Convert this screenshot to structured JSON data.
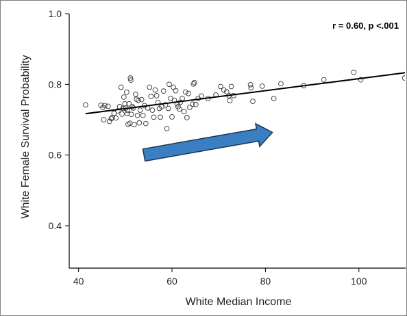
{
  "chart_data": {
    "type": "scatter",
    "xlabel": "White Median Income",
    "ylabel": "White Female Survival Probability",
    "xlim": [
      38,
      110
    ],
    "ylim": [
      0.28,
      1.0
    ],
    "xticks": [
      40,
      60,
      80,
      100
    ],
    "yticks": [
      0.4,
      0.6,
      0.8,
      1.0
    ],
    "xtick_labels": [
      "40",
      "60",
      "80",
      "100"
    ],
    "ytick_labels": [
      "0.4",
      "0.6",
      "0.8",
      "1.0"
    ],
    "annotation": "r = 0.60, p <.001",
    "grid": false,
    "marker_color": "#333333",
    "line_color": "#000000",
    "arrow_color": "#3a7fc1",
    "fit_line": {
      "x": [
        41.5,
        110
      ],
      "y": [
        0.717,
        0.833
      ]
    },
    "arrow": {
      "from": [
        54,
        0.6
      ],
      "to": [
        81.5,
        0.664
      ]
    },
    "points": [
      [
        41.5,
        0.742
      ],
      [
        44.8,
        0.741
      ],
      [
        45.2,
        0.735
      ],
      [
        45.4,
        0.7
      ],
      [
        45.6,
        0.74
      ],
      [
        46.3,
        0.738
      ],
      [
        46.6,
        0.695
      ],
      [
        47.0,
        0.703
      ],
      [
        47.2,
        0.706
      ],
      [
        47.6,
        0.718
      ],
      [
        48.0,
        0.705
      ],
      [
        48.4,
        0.725
      ],
      [
        48.8,
        0.737
      ],
      [
        49.1,
        0.792
      ],
      [
        49.3,
        0.716
      ],
      [
        49.5,
        0.732
      ],
      [
        49.7,
        0.764
      ],
      [
        49.9,
        0.745
      ],
      [
        50.1,
        0.733
      ],
      [
        50.3,
        0.778
      ],
      [
        50.4,
        0.718
      ],
      [
        50.5,
        0.726
      ],
      [
        50.6,
        0.687
      ],
      [
        50.8,
        0.745
      ],
      [
        51.0,
        0.69
      ],
      [
        51.1,
        0.818
      ],
      [
        51.2,
        0.812
      ],
      [
        51.3,
        0.715
      ],
      [
        51.5,
        0.737
      ],
      [
        51.7,
        0.733
      ],
      [
        51.9,
        0.686
      ],
      [
        52.2,
        0.772
      ],
      [
        52.4,
        0.758
      ],
      [
        52.6,
        0.712
      ],
      [
        52.8,
        0.755
      ],
      [
        53.0,
        0.691
      ],
      [
        53.2,
        0.727
      ],
      [
        53.5,
        0.757
      ],
      [
        53.8,
        0.712
      ],
      [
        54.1,
        0.74
      ],
      [
        54.4,
        0.689
      ],
      [
        54.8,
        0.733
      ],
      [
        55.2,
        0.792
      ],
      [
        55.5,
        0.766
      ],
      [
        55.8,
        0.727
      ],
      [
        56.1,
        0.707
      ],
      [
        56.4,
        0.784
      ],
      [
        56.7,
        0.768
      ],
      [
        57.0,
        0.749
      ],
      [
        57.3,
        0.732
      ],
      [
        57.5,
        0.707
      ],
      [
        57.8,
        0.737
      ],
      [
        58.2,
        0.781
      ],
      [
        58.6,
        0.742
      ],
      [
        58.9,
        0.675
      ],
      [
        59.2,
        0.732
      ],
      [
        59.4,
        0.8
      ],
      [
        59.7,
        0.76
      ],
      [
        60.0,
        0.708
      ],
      [
        60.3,
        0.792
      ],
      [
        60.5,
        0.755
      ],
      [
        60.8,
        0.782
      ],
      [
        61.1,
        0.745
      ],
      [
        61.3,
        0.737
      ],
      [
        61.6,
        0.73
      ],
      [
        61.8,
        0.749
      ],
      [
        62.2,
        0.76
      ],
      [
        62.6,
        0.723
      ],
      [
        62.9,
        0.778
      ],
      [
        63.2,
        0.706
      ],
      [
        63.5,
        0.774
      ],
      [
        63.8,
        0.735
      ],
      [
        64.4,
        0.744
      ],
      [
        64.6,
        0.801
      ],
      [
        64.8,
        0.805
      ],
      [
        65.1,
        0.743
      ],
      [
        65.6,
        0.76
      ],
      [
        66.3,
        0.767
      ],
      [
        67.7,
        0.76
      ],
      [
        69.4,
        0.77
      ],
      [
        70.4,
        0.794
      ],
      [
        71.1,
        0.784
      ],
      [
        71.7,
        0.779
      ],
      [
        72.2,
        0.768
      ],
      [
        72.4,
        0.754
      ],
      [
        72.7,
        0.794
      ],
      [
        73.2,
        0.768
      ],
      [
        76.8,
        0.799
      ],
      [
        76.9,
        0.79
      ],
      [
        77.3,
        0.752
      ],
      [
        79.3,
        0.795
      ],
      [
        81.8,
        0.76
      ],
      [
        83.3,
        0.802
      ],
      [
        88.2,
        0.796
      ],
      [
        92.5,
        0.813
      ],
      [
        98.9,
        0.834
      ],
      [
        100.4,
        0.813
      ],
      [
        109.8,
        0.818
      ]
    ]
  }
}
